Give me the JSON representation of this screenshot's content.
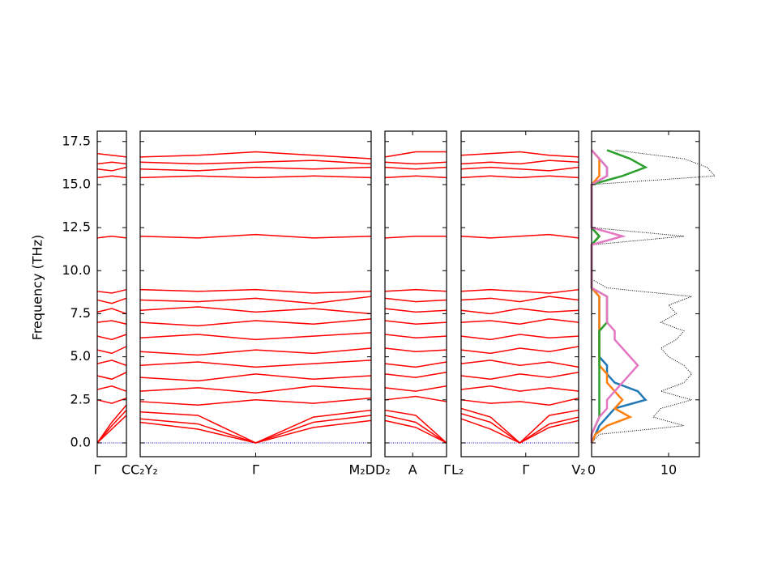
{
  "chart_data": {
    "type": "band",
    "ylabel": "Frequency (THz)",
    "ylim": [
      -0.8,
      18.1
    ],
    "yticks": [
      {
        "value": 0,
        "label": "0.0"
      },
      2.5,
      {
        "value": 5,
        "label": "5.0"
      },
      7.5,
      {
        "value": 10,
        "label": "10.0"
      },
      12.5,
      {
        "value": 15,
        "label": "15.0"
      },
      17.5
    ],
    "color": "#ff0000",
    "zero_line": {
      "value": 0,
      "color": "#0000cc"
    },
    "panels": [
      {
        "x": [
          0,
          0.5,
          1
        ],
        "xlim": [
          0,
          1
        ],
        "xticks": [
          {
            "value": 0,
            "label": "Γ"
          },
          {
            "value": 1,
            "label": "C"
          }
        ],
        "bands": [
          [
            0,
            0.8,
            1.6
          ],
          [
            0,
            1.0,
            1.9
          ],
          [
            0,
            1.2,
            2.2
          ],
          [
            2.5,
            2.3,
            2.6
          ],
          [
            3.1,
            3.3,
            3.0
          ],
          [
            3.9,
            3.7,
            4.1
          ],
          [
            4.6,
            4.8,
            4.5
          ],
          [
            5.4,
            5.2,
            5.6
          ],
          [
            6.2,
            6.0,
            6.3
          ],
          [
            7.0,
            7.1,
            6.9
          ],
          [
            7.6,
            7.8,
            7.5
          ],
          [
            8.3,
            8.1,
            8.4
          ],
          [
            8.8,
            8.7,
            8.9
          ],
          [
            11.9,
            12.0,
            11.9
          ],
          [
            15.4,
            15.5,
            15.4
          ],
          [
            15.9,
            15.8,
            16.0
          ],
          [
            16.2,
            16.3,
            16.2
          ],
          [
            16.8,
            16.7,
            16.6
          ]
        ]
      },
      {
        "x": [
          0,
          0.5,
          1,
          1.5,
          2
        ],
        "xlim": [
          0,
          2
        ],
        "xticks": [
          {
            "value": 0,
            "label": "C₂Y₂"
          },
          {
            "value": 1,
            "label": "Γ"
          },
          {
            "value": 2,
            "label": "M₂D"
          }
        ],
        "bands": [
          [
            1.2,
            0.8,
            0,
            0.9,
            1.3
          ],
          [
            1.4,
            1.1,
            0,
            1.2,
            1.6
          ],
          [
            1.8,
            1.6,
            0,
            1.5,
            1.9
          ],
          [
            2.4,
            2.2,
            2.5,
            2.3,
            2.6
          ],
          [
            3.0,
            3.2,
            2.9,
            3.3,
            3.1
          ],
          [
            3.8,
            3.6,
            4.0,
            3.7,
            3.9
          ],
          [
            4.5,
            4.7,
            4.4,
            4.6,
            4.8
          ],
          [
            5.3,
            5.1,
            5.4,
            5.2,
            5.5
          ],
          [
            6.1,
            6.3,
            6.0,
            6.2,
            6.4
          ],
          [
            7.0,
            6.8,
            7.1,
            6.9,
            7.2
          ],
          [
            7.7,
            7.9,
            7.6,
            7.8,
            7.5
          ],
          [
            8.3,
            8.2,
            8.4,
            8.1,
            8.5
          ],
          [
            8.9,
            8.8,
            8.9,
            8.7,
            8.8
          ],
          [
            12.0,
            11.9,
            12.1,
            11.9,
            12.0
          ],
          [
            15.4,
            15.5,
            15.4,
            15.5,
            15.4
          ],
          [
            15.9,
            15.8,
            16.0,
            15.9,
            16.0
          ],
          [
            16.3,
            16.2,
            16.3,
            16.4,
            16.2
          ],
          [
            16.6,
            16.7,
            16.9,
            16.7,
            16.5
          ]
        ]
      },
      {
        "x": [
          0,
          0.5,
          1
        ],
        "xlim": [
          0,
          1
        ],
        "xticks": [
          {
            "value": 0,
            "label": "D₂"
          },
          {
            "value": 0.45,
            "label": "A"
          },
          {
            "value": 1,
            "label": "Γ"
          }
        ],
        "bands": [
          [
            1.3,
            0.9,
            0
          ],
          [
            1.6,
            1.2,
            0
          ],
          [
            1.9,
            1.6,
            0
          ],
          [
            2.5,
            2.7,
            2.4
          ],
          [
            3.2,
            3.0,
            3.3
          ],
          [
            4.0,
            3.8,
            4.1
          ],
          [
            4.6,
            4.4,
            4.7
          ],
          [
            5.5,
            5.3,
            5.4
          ],
          [
            6.3,
            6.1,
            6.2
          ],
          [
            7.1,
            6.9,
            7.0
          ],
          [
            7.8,
            7.6,
            7.7
          ],
          [
            8.4,
            8.2,
            8.3
          ],
          [
            8.8,
            8.9,
            8.8
          ],
          [
            11.9,
            12.0,
            12.0
          ],
          [
            15.4,
            15.5,
            15.4
          ],
          [
            16.0,
            15.9,
            16.0
          ],
          [
            16.3,
            16.2,
            16.3
          ],
          [
            16.6,
            16.9,
            16.9
          ]
        ]
      },
      {
        "x": [
          0,
          0.5,
          1,
          1.5,
          2
        ],
        "xlim": [
          0,
          2
        ],
        "xticks": [
          {
            "value": 0,
            "label": "L₂"
          },
          {
            "value": 1.1,
            "label": "Γ"
          },
          {
            "value": 2,
            "label": "V₂"
          }
        ],
        "bands": [
          [
            1.4,
            0.8,
            0,
            0.9,
            1.3
          ],
          [
            1.7,
            1.2,
            0,
            1.1,
            1.5
          ],
          [
            2.0,
            1.5,
            0,
            1.6,
            1.9
          ],
          [
            2.5,
            2.3,
            2.4,
            2.2,
            2.6
          ],
          [
            3.1,
            3.3,
            3.0,
            3.2,
            3.0
          ],
          [
            3.9,
            3.7,
            4.0,
            3.8,
            4.1
          ],
          [
            4.6,
            4.8,
            4.5,
            4.7,
            4.4
          ],
          [
            5.4,
            5.2,
            5.5,
            5.3,
            5.6
          ],
          [
            6.2,
            6.0,
            6.3,
            6.1,
            6.2
          ],
          [
            7.0,
            7.1,
            6.9,
            7.2,
            7.0
          ],
          [
            7.7,
            7.5,
            7.8,
            7.6,
            7.7
          ],
          [
            8.3,
            8.4,
            8.2,
            8.5,
            8.3
          ],
          [
            8.8,
            8.9,
            8.8,
            8.7,
            8.9
          ],
          [
            12.0,
            11.9,
            12.0,
            12.1,
            11.9
          ],
          [
            15.4,
            15.5,
            15.4,
            15.5,
            15.4
          ],
          [
            15.9,
            16.0,
            15.9,
            15.8,
            16.0
          ],
          [
            16.2,
            16.3,
            16.2,
            16.4,
            16.3
          ],
          [
            16.7,
            16.8,
            16.9,
            16.7,
            16.6
          ]
        ]
      }
    ],
    "dos": {
      "xlim": [
        0,
        14
      ],
      "xticks": [
        0,
        10
      ],
      "frequencies": [
        0,
        0.5,
        1,
        1.5,
        2,
        2.5,
        3,
        3.5,
        4,
        4.5,
        5,
        5.5,
        6,
        6.5,
        7,
        7.5,
        8,
        8.5,
        9,
        9.5,
        10,
        10.5,
        11,
        11.5,
        12,
        12.5,
        13,
        13.5,
        14,
        14.5,
        15,
        15.5,
        16,
        16.5,
        17
      ],
      "series": [
        {
          "color": "#000000",
          "values": [
            0,
            1,
            12,
            8,
            9,
            13,
            9,
            12,
            13,
            12,
            10,
            9,
            11,
            12,
            9,
            11,
            10,
            13,
            2,
            0,
            0,
            0,
            0,
            0,
            12,
            0,
            0,
            0,
            0,
            0,
            0,
            16,
            15,
            12,
            3
          ]
        },
        {
          "color": "#1f77b4",
          "values": [
            0,
            0.5,
            1,
            2,
            3,
            7,
            6,
            3,
            2,
            2,
            1,
            1,
            1,
            1,
            1,
            1,
            1,
            1,
            0,
            0,
            0,
            0,
            0,
            0,
            1,
            0,
            0,
            0,
            0,
            0,
            0,
            2,
            2,
            1,
            0
          ]
        },
        {
          "color": "#ff7f0e",
          "values": [
            0,
            0.5,
            2,
            5,
            3,
            4,
            3,
            2,
            2,
            1,
            1,
            1,
            1,
            1,
            1,
            1,
            1,
            1,
            0,
            0,
            0,
            0,
            0,
            0,
            1,
            0,
            0,
            0,
            0,
            0,
            0,
            1,
            1,
            1,
            0
          ]
        },
        {
          "color": "#2ca02c",
          "values": [
            0,
            0,
            0.5,
            1,
            1,
            1,
            1,
            1,
            1,
            1,
            1,
            1,
            1,
            1,
            2,
            2,
            2,
            2,
            0,
            0,
            0,
            0,
            0,
            0,
            1,
            0,
            0,
            0,
            0,
            0,
            0,
            4,
            7,
            5,
            2
          ]
        },
        {
          "color": "#e377c2",
          "values": [
            0,
            0,
            0.5,
            1,
            2,
            2,
            3,
            4,
            5,
            6,
            5,
            4,
            3,
            3,
            2,
            2,
            2,
            2,
            0,
            0,
            0,
            0,
            0,
            0,
            4,
            0,
            0,
            0,
            0,
            0,
            0,
            2,
            2,
            1,
            0
          ]
        }
      ]
    }
  }
}
